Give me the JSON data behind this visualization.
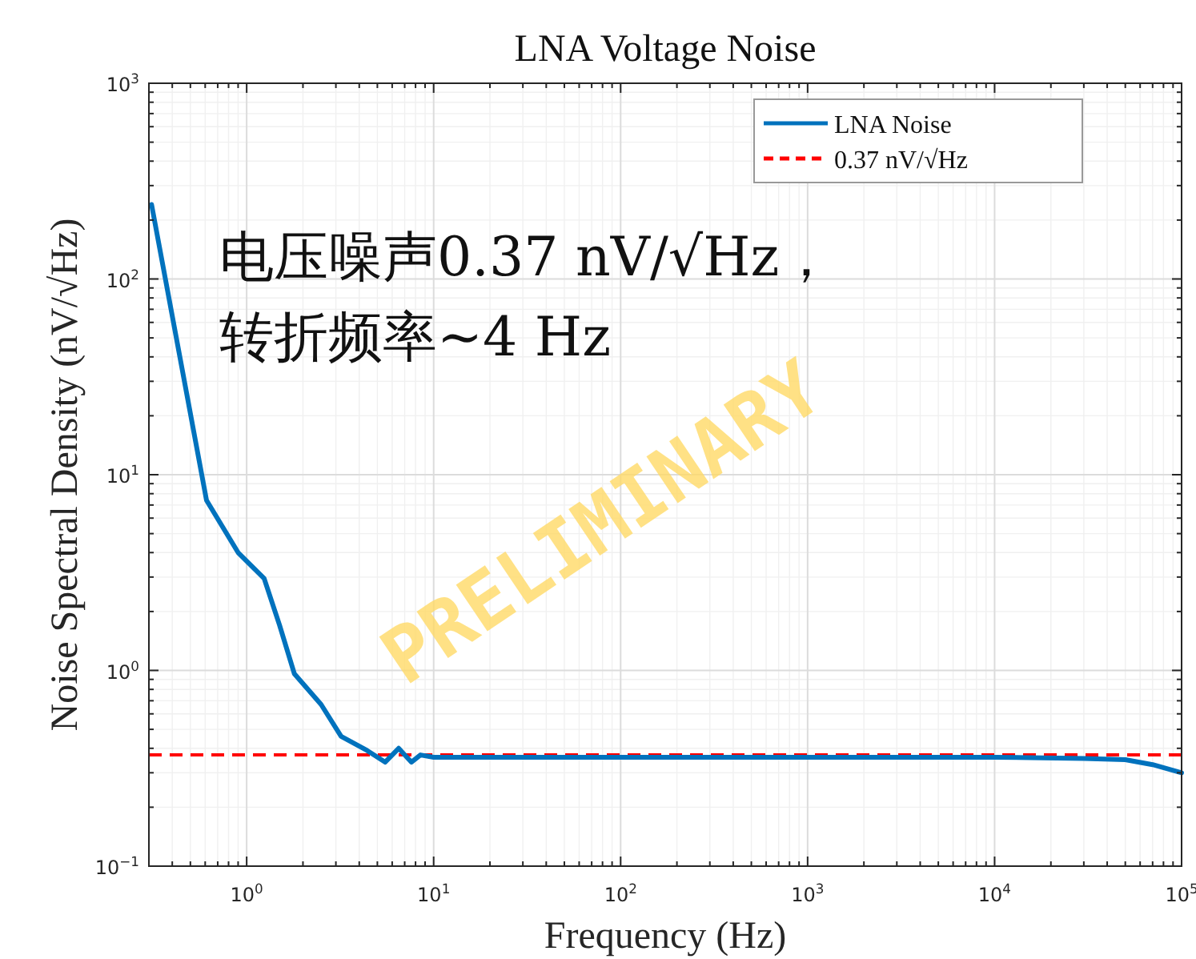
{
  "chart_data": {
    "type": "line",
    "title": "LNA Voltage Noise",
    "xlabel": "Frequency (Hz)",
    "ylabel": "Noise Spectral Density (nV/√Hz)",
    "log": "xy",
    "xlim": [
      0.3,
      100000
    ],
    "ylim": [
      0.1,
      1000
    ],
    "xticks": [
      {
        "value": 1,
        "label": "10$^{0}$"
      },
      {
        "value": 10,
        "label": "10$^{1}$"
      },
      {
        "value": 100,
        "label": "10$^{2}$"
      },
      {
        "value": 1000,
        "label": "10$^{3}$"
      },
      {
        "value": 10000,
        "label": "10$^{4}$"
      },
      {
        "value": 100000,
        "label": "10$^{5}$"
      }
    ],
    "yticks": [
      {
        "value": 0.1,
        "label": "10$^{−1}$"
      },
      {
        "value": 1,
        "label": "10$^{0}$"
      },
      {
        "value": 10,
        "label": "10$^{1}$"
      },
      {
        "value": 100,
        "label": "10$^{2}$"
      },
      {
        "value": 1000,
        "label": "10$^{3}$"
      }
    ],
    "grid": true,
    "legend": "top right",
    "line_style": "solid",
    "marker": "none",
    "series": [
      {
        "name": "LNA Noise",
        "color": "#0072bd",
        "x": [
          0.31,
          0.61,
          0.9,
          1.24,
          1.5,
          1.8,
          2.5,
          3.2,
          4.4,
          5.5,
          6.5,
          7.6,
          8.5,
          10,
          30,
          100,
          300,
          1000,
          3000,
          10000,
          30000,
          50000,
          70000,
          100000
        ],
        "values": [
          240,
          7.4,
          4,
          2.95,
          1.7,
          0.96,
          0.67,
          0.46,
          0.39,
          0.34,
          0.4,
          0.34,
          0.37,
          0.36,
          0.36,
          0.36,
          0.36,
          0.36,
          0.36,
          0.36,
          0.355,
          0.35,
          0.33,
          0.3
        ]
      }
    ],
    "ref_lines": [
      {
        "axis": "y",
        "value": 0.37,
        "label": "0.37 nV/√Hz",
        "color": "#ff0000",
        "line_style": "dashed"
      }
    ],
    "annotations": [
      "电压噪声0.37 nV/√Hz，",
      "转折频率~4 Hz",
      "PRELIMINARY"
    ]
  }
}
